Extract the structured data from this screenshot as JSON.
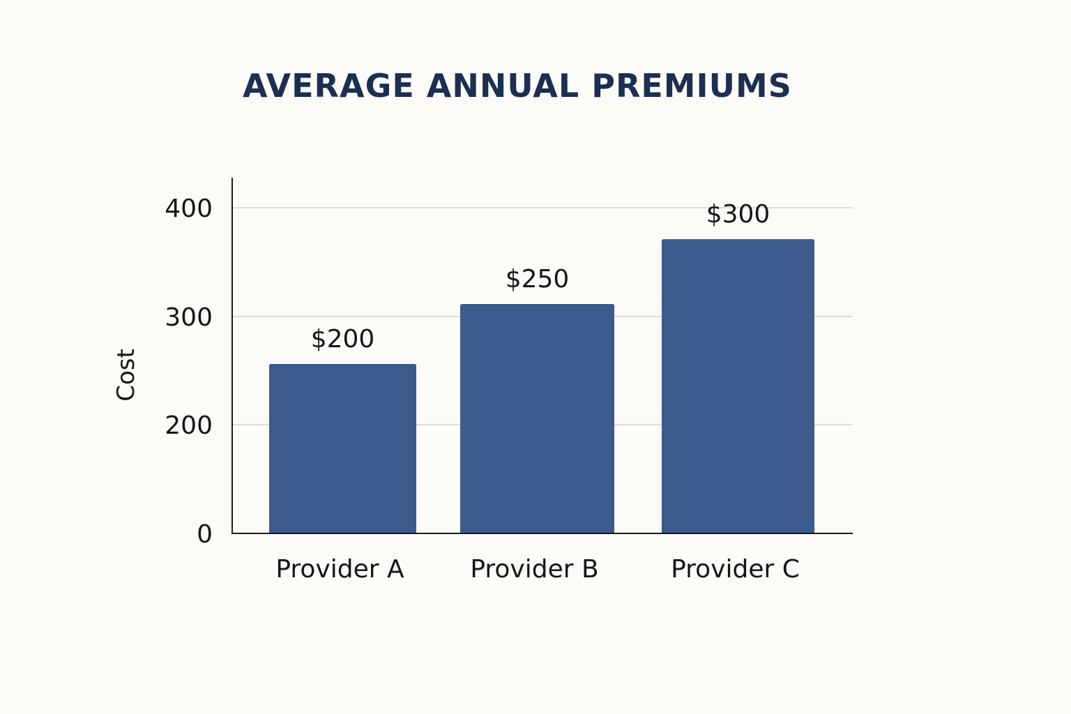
{
  "chart_data": {
    "type": "bar",
    "title": "AVERAGE ANNUAL PREMIUMS",
    "xlabel": "",
    "ylabel": "Cost",
    "categories": [
      "Provider A",
      "Provider B",
      "Provider C"
    ],
    "values": [
      200,
      250,
      300
    ],
    "data_labels": [
      "$200",
      "$250",
      "$300"
    ],
    "yticks": [
      0,
      200,
      300,
      400
    ],
    "ytick_labels": [
      "0",
      "200",
      "300",
      "400"
    ],
    "grid": true,
    "bar_color": "#3a5b8c",
    "title_color": "#1b2f52"
  }
}
